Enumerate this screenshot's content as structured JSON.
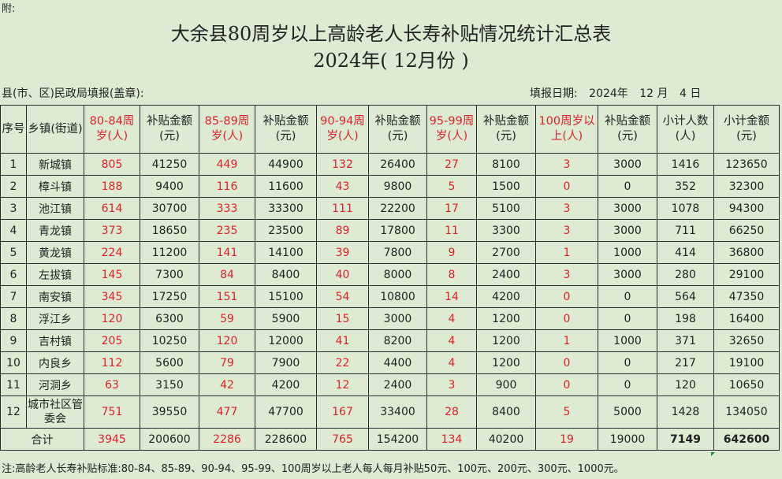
{
  "top_note": "附:",
  "title": {
    "line1": "大余县80周岁以上高龄老人长寿补贴情况统计汇总表",
    "line2": "2024年(  12月份  )"
  },
  "meta": {
    "left": "县(市、区)民政局填报(盖章):",
    "date_label": "填报日期:",
    "year": "2024年",
    "month": "12  月",
    "day": "4  日"
  },
  "table": {
    "headers": [
      "序号",
      "乡镇(街道)",
      "80-84周岁(人)",
      "补贴金额(元)",
      "85-89周岁(人)",
      "补贴金额(元)",
      "90-94周岁(人)",
      "补贴金额(元)",
      "95-99周岁(人)",
      "补贴金额(元)",
      "100周岁以上(人)",
      "补贴金额(元)",
      "小计人数(人)",
      "小计金额(元)"
    ],
    "rows": [
      [
        "1",
        "新城镇",
        "805",
        "41250",
        "449",
        "44900",
        "132",
        "26400",
        "27",
        "8100",
        "3",
        "3000",
        "1416",
        "123650"
      ],
      [
        "2",
        "樟斗镇",
        "188",
        "9400",
        "116",
        "11600",
        "43",
        "9800",
        "5",
        "1500",
        "0",
        "0",
        "352",
        "32300"
      ],
      [
        "3",
        "池江镇",
        "614",
        "30700",
        "333",
        "33300",
        "111",
        "22200",
        "17",
        "5100",
        "3",
        "3000",
        "1078",
        "94300"
      ],
      [
        "4",
        "青龙镇",
        "373",
        "18650",
        "235",
        "23500",
        "89",
        "17800",
        "11",
        "3300",
        "3",
        "3000",
        "711",
        "66250"
      ],
      [
        "5",
        "黄龙镇",
        "224",
        "11200",
        "141",
        "14100",
        "39",
        "7800",
        "9",
        "2700",
        "1",
        "1000",
        "414",
        "36800"
      ],
      [
        "6",
        "左拔镇",
        "145",
        "7300",
        "84",
        "8400",
        "40",
        "8000",
        "8",
        "2400",
        "3",
        "3000",
        "280",
        "29100"
      ],
      [
        "7",
        "南安镇",
        "345",
        "17250",
        "151",
        "15100",
        "54",
        "10800",
        "14",
        "4200",
        "0",
        "0",
        "564",
        "47350"
      ],
      [
        "8",
        "浮江乡",
        "120",
        "6300",
        "59",
        "5900",
        "15",
        "3000",
        "4",
        "1200",
        "0",
        "0",
        "198",
        "16400"
      ],
      [
        "9",
        "吉村镇",
        "205",
        "10250",
        "120",
        "12000",
        "41",
        "8200",
        "4",
        "1200",
        "1",
        "1000",
        "371",
        "32650"
      ],
      [
        "10",
        "内良乡",
        "112",
        "5600",
        "79",
        "7900",
        "22",
        "4400",
        "4",
        "1200",
        "0",
        "0",
        "217",
        "19100"
      ],
      [
        "11",
        "河洞乡",
        "63",
        "3150",
        "42",
        "4200",
        "12",
        "2400",
        "3",
        "900",
        "0",
        "0",
        "120",
        "10650"
      ],
      [
        "12",
        "城市社区管委会",
        "751",
        "39550",
        "477",
        "47700",
        "167",
        "33400",
        "28",
        "8400",
        "5",
        "5000",
        "1428",
        "134050"
      ]
    ],
    "total": [
      "合计",
      "3945",
      "200600",
      "2286",
      "228600",
      "765",
      "154200",
      "134",
      "40200",
      "19",
      "19000",
      "7149",
      "642600"
    ]
  },
  "footnote": "注:高龄老人长寿补贴标准:80-84、85-89、90-94、95-99、100周岁以上老人每人每月补贴50元、100元、200元、300元、1000元。",
  "colors": {
    "background": "#dcebd2",
    "red_text": "#e0202a",
    "grid": "#2a2a2a",
    "marker": "#1e8a3a"
  }
}
